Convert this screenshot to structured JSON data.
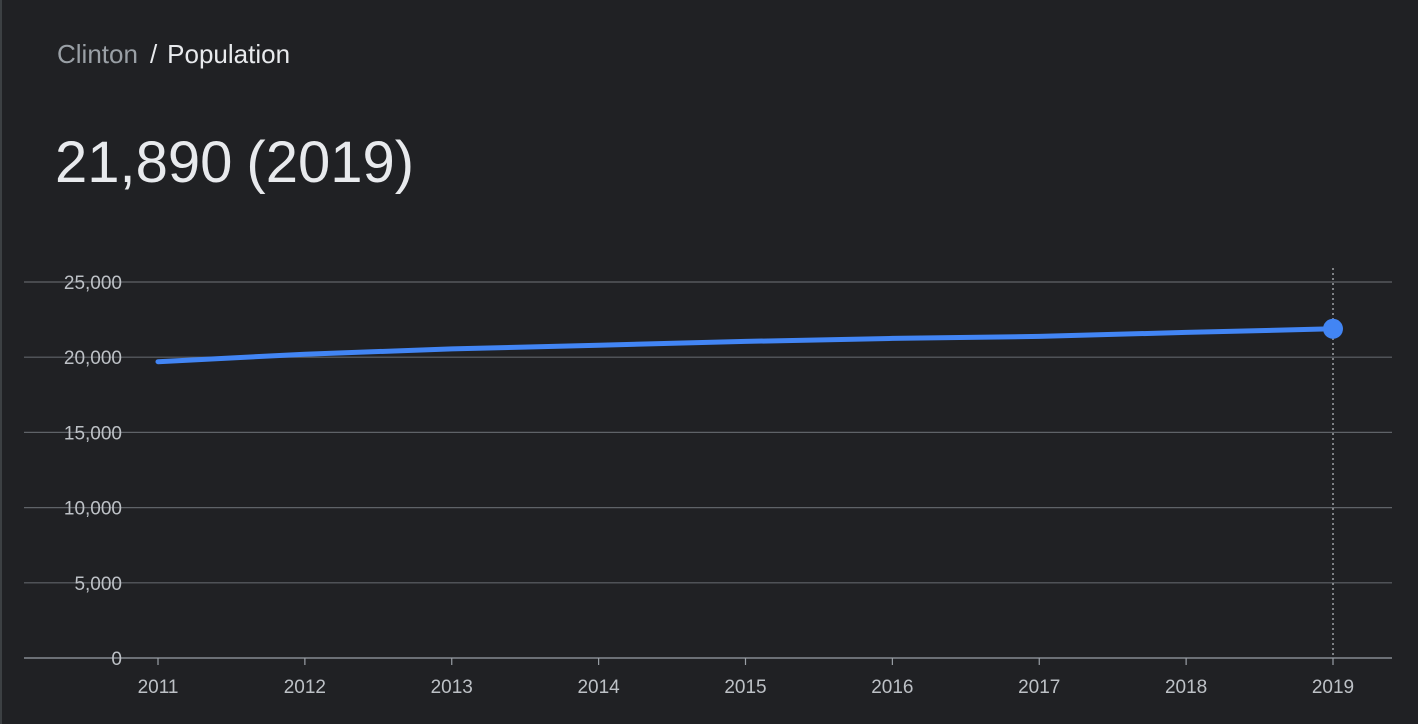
{
  "breadcrumb": {
    "parent": "Clinton",
    "separator": "/",
    "current": "Population"
  },
  "headline": {
    "value": "21,890",
    "year": "(2019)"
  },
  "colors": {
    "background": "#202124",
    "line": "#4285f4",
    "grid": "#5f6368",
    "label": "#bdc1c6"
  },
  "chart_data": {
    "type": "line",
    "title": "",
    "xlabel": "",
    "ylabel": "",
    "x": [
      2011,
      2012,
      2013,
      2014,
      2015,
      2016,
      2017,
      2018,
      2019
    ],
    "series": [
      {
        "values": [
          19700,
          20200,
          20550,
          20800,
          21050,
          21250,
          21380,
          21650,
          21890
        ]
      }
    ],
    "ylim": [
      0,
      25000
    ],
    "yticks": [
      0,
      5000,
      10000,
      15000,
      20000,
      25000
    ],
    "ytick_labels": [
      "0",
      "5,000",
      "10,000",
      "15,000",
      "20,000",
      "25,000"
    ],
    "xtick_labels": [
      "2011",
      "2012",
      "2013",
      "2014",
      "2015",
      "2016",
      "2017",
      "2018",
      "2019"
    ],
    "highlight": {
      "x": 2019,
      "value": 21890
    },
    "grid": true,
    "legend": "none"
  }
}
